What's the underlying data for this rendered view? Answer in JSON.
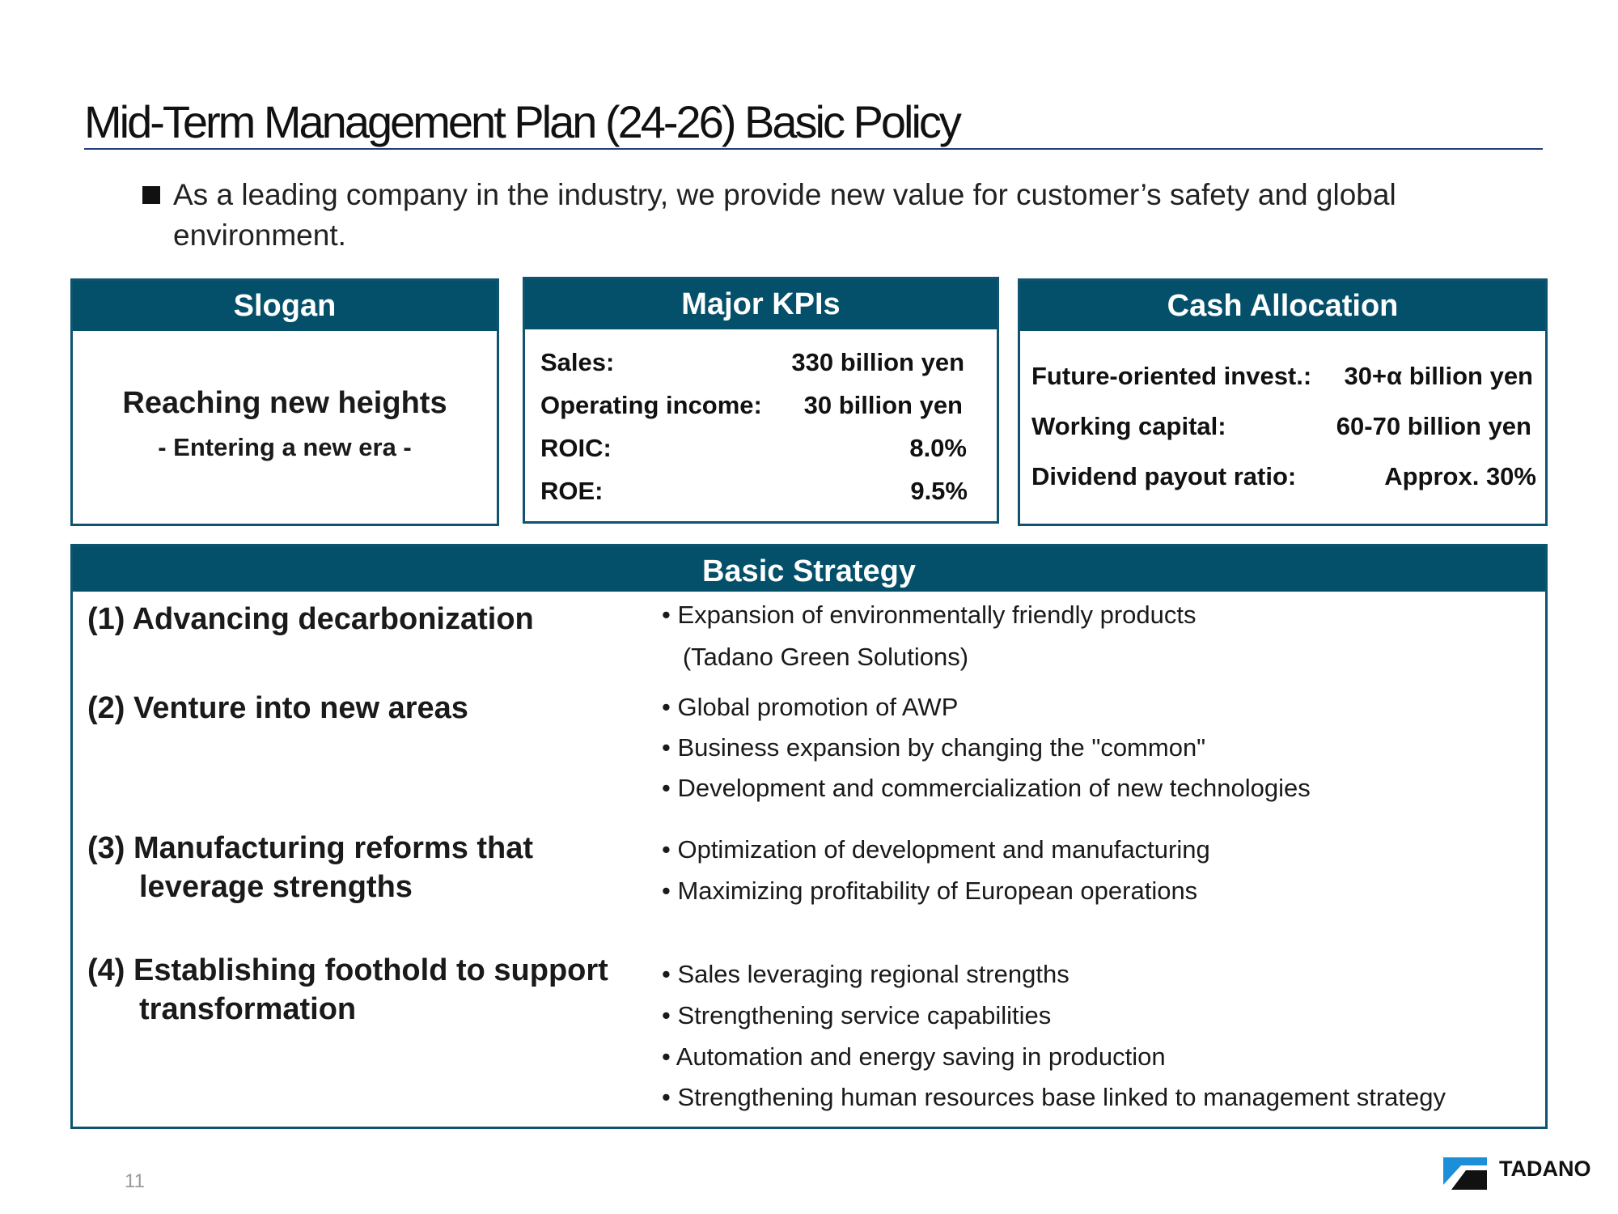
{
  "title": "Mid-Term Management Plan (24-26) Basic Policy",
  "lead": "As a leading company in the industry, we provide new value for customer’s safety and global environment.",
  "slogan": {
    "header": "Slogan",
    "main": "Reaching new heights",
    "sub": "- Entering a new era -"
  },
  "kpis": {
    "header": "Major KPIs",
    "rows": [
      {
        "label": "Sales:",
        "value": "330 billion yen"
      },
      {
        "label": "Operating income:",
        "value": "30 billion yen"
      },
      {
        "label": "ROIC:",
        "value": "8.0%"
      },
      {
        "label": "ROE:",
        "value": "9.5%"
      }
    ]
  },
  "cash": {
    "header": "Cash Allocation",
    "rows": [
      {
        "label": "Future-oriented invest.:",
        "value": "30+α billion yen"
      },
      {
        "label": "Working capital:",
        "value": "60-70 billion yen"
      },
      {
        "label": "Dividend payout ratio:",
        "value": "Approx. 30%"
      }
    ]
  },
  "strategy": {
    "header": "Basic Strategy",
    "items": [
      {
        "title": "(1) Advancing decarbonization",
        "title_cont": "",
        "bullets": [
          "• Expansion of environmentally friendly products",
          "   (Tadano Green Solutions)"
        ]
      },
      {
        "title": "(2) Venture into new areas",
        "title_cont": "",
        "bullets": [
          "• Global promotion of AWP",
          "• Business expansion by changing the \"common\"",
          "• Development and commercialization of new technologies"
        ]
      },
      {
        "title": "(3) Manufacturing reforms that",
        "title_cont": "leverage strengths",
        "bullets": [
          "• Optimization of development and manufacturing",
          "• Maximizing profitability of European operations"
        ]
      },
      {
        "title": "(4) Establishing foothold to support",
        "title_cont": "transformation",
        "bullets": [
          "• Sales leveraging regional strengths",
          "• Strengthening service capabilities",
          "• Automation and energy saving in production",
          "• Strengthening human resources base linked to management strategy"
        ]
      }
    ]
  },
  "footer": {
    "page_number": "11",
    "logo_text": "TADANO",
    "logo_icon": "tadano-logo-mark"
  },
  "colors": {
    "header_fill": "#04506a",
    "border": "#0e5470",
    "title_rule": "#1f3f7a"
  }
}
